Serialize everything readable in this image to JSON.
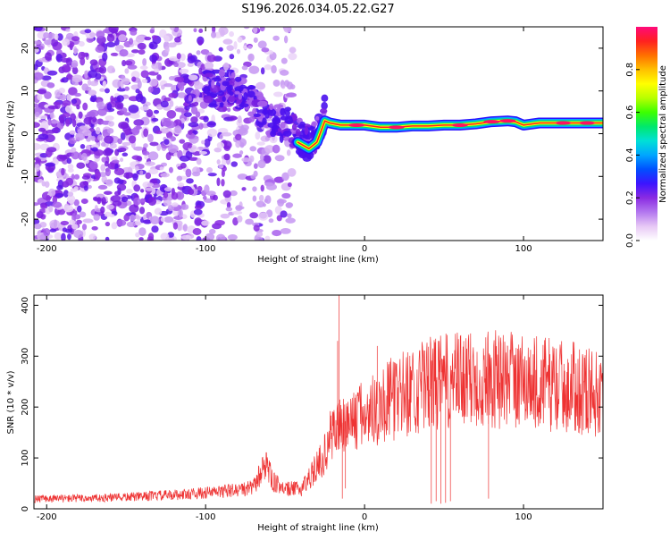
{
  "title": "S196.2026.034.05.22.G27",
  "chart_data": [
    {
      "type": "heatmap",
      "xlabel": "Height of straight line (km)",
      "ylabel": "Frequency (Hz)",
      "xlim": [
        -208,
        150
      ],
      "ylim": [
        -25,
        25
      ],
      "xticks": [
        -200,
        -100,
        0,
        100
      ],
      "yticks": [
        -20,
        -10,
        0,
        10,
        20
      ],
      "colorbar": {
        "label": "Normalized spectral amplitude",
        "range": [
          0,
          1
        ],
        "ticks": [
          0,
          0.2,
          0.4,
          0.6,
          0.8
        ],
        "colors": [
          "#ffffff",
          "#e7c8f5",
          "#b377ef",
          "#8a2be2",
          "#3c14ff",
          "#0050ff",
          "#00a6ff",
          "#00e0d6",
          "#00e86c",
          "#3cff00",
          "#b8ff00",
          "#ffff00",
          "#ffc000",
          "#ff7000",
          "#ff2020",
          "#ff0a7a"
        ]
      },
      "ridge": [
        {
          "x": -80,
          "y": 9
        },
        {
          "x": -70,
          "y": 5
        },
        {
          "x": -60,
          "y": 2
        },
        {
          "x": -50,
          "y": 1
        },
        {
          "x": -42,
          "y": -2
        },
        {
          "x": -35,
          "y": -3.5
        },
        {
          "x": -30,
          "y": -2
        },
        {
          "x": -27,
          "y": 1
        },
        {
          "x": -25,
          "y": 3
        },
        {
          "x": -22,
          "y": 2.5
        },
        {
          "x": -15,
          "y": 2
        },
        {
          "x": -5,
          "y": 2
        },
        {
          "x": 0,
          "y": 2
        },
        {
          "x": 10,
          "y": 1.5
        },
        {
          "x": 20,
          "y": 1.5
        },
        {
          "x": 30,
          "y": 1.8
        },
        {
          "x": 40,
          "y": 1.8
        },
        {
          "x": 50,
          "y": 2
        },
        {
          "x": 60,
          "y": 2
        },
        {
          "x": 70,
          "y": 2.3
        },
        {
          "x": 80,
          "y": 2.8
        },
        {
          "x": 90,
          "y": 3
        },
        {
          "x": 95,
          "y": 2.8
        },
        {
          "x": 100,
          "y": 2
        },
        {
          "x": 110,
          "y": 2.5
        },
        {
          "x": 120,
          "y": 2.5
        },
        {
          "x": 130,
          "y": 2.5
        },
        {
          "x": 150,
          "y": 2.5
        }
      ]
    },
    {
      "type": "line",
      "xlabel": "Height of straight line (km)",
      "ylabel": "SNR (10 * v/v)",
      "xlim": [
        -208,
        150
      ],
      "ylim": [
        0,
        420
      ],
      "xticks": [
        -200,
        -100,
        0,
        100
      ],
      "yticks": [
        0,
        100,
        200,
        300,
        400
      ],
      "color": "#ee3333",
      "envelope": [
        {
          "x": -208,
          "y": 20
        },
        {
          "x": -160,
          "y": 22
        },
        {
          "x": -120,
          "y": 28
        },
        {
          "x": -100,
          "y": 32
        },
        {
          "x": -80,
          "y": 38
        },
        {
          "x": -70,
          "y": 42
        },
        {
          "x": -62,
          "y": 95
        },
        {
          "x": -58,
          "y": 55
        },
        {
          "x": -50,
          "y": 40
        },
        {
          "x": -40,
          "y": 40
        },
        {
          "x": -32,
          "y": 75
        },
        {
          "x": -25,
          "y": 110
        },
        {
          "x": -20,
          "y": 160
        },
        {
          "x": -10,
          "y": 175
        },
        {
          "x": 0,
          "y": 190
        },
        {
          "x": 10,
          "y": 210
        },
        {
          "x": 20,
          "y": 225
        },
        {
          "x": 30,
          "y": 240
        },
        {
          "x": 40,
          "y": 250
        },
        {
          "x": 50,
          "y": 255
        },
        {
          "x": 60,
          "y": 258
        },
        {
          "x": 80,
          "y": 262
        },
        {
          "x": 100,
          "y": 258
        },
        {
          "x": 120,
          "y": 250
        },
        {
          "x": 140,
          "y": 240
        },
        {
          "x": 150,
          "y": 228
        }
      ],
      "spikes": [
        {
          "x": -16,
          "y": 420
        },
        {
          "x": -17,
          "y": 330
        },
        {
          "x": -14,
          "y": 20
        },
        {
          "x": -12,
          "y": 40
        },
        {
          "x": 42,
          "y": 10
        },
        {
          "x": 45,
          "y": 15
        },
        {
          "x": 48,
          "y": 10
        },
        {
          "x": 51,
          "y": 12
        },
        {
          "x": 54,
          "y": 15
        },
        {
          "x": 78,
          "y": 20
        },
        {
          "x": 8,
          "y": 320
        },
        {
          "x": 47,
          "y": 330
        },
        {
          "x": 90,
          "y": 320
        }
      ]
    }
  ]
}
